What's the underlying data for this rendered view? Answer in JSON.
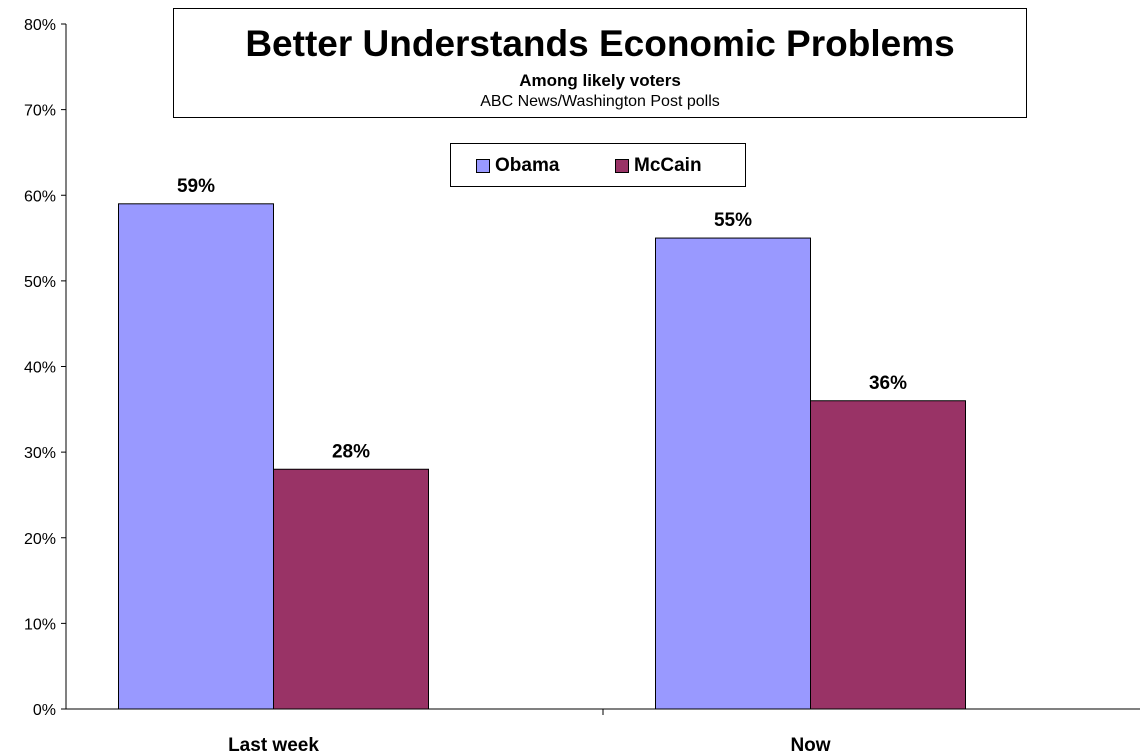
{
  "chart_data": {
    "type": "bar",
    "title": "Better Understands Economic Problems",
    "subtitle": "Among likely voters",
    "source": "ABC News/Washington Post polls",
    "categories": [
      "Last week",
      "Now"
    ],
    "series": [
      {
        "name": "Obama",
        "values": [
          59,
          55
        ],
        "color": "#9999ff"
      },
      {
        "name": "McCain",
        "values": [
          28,
          36
        ],
        "color": "#993366"
      }
    ],
    "data_labels": [
      [
        "59%",
        "55%"
      ],
      [
        "28%",
        "36%"
      ]
    ],
    "ylim": [
      0,
      80
    ],
    "yticks": [
      0,
      10,
      20,
      30,
      40,
      50,
      60,
      70,
      80
    ],
    "ytick_labels": [
      "0%",
      "10%",
      "20%",
      "30%",
      "40%",
      "50%",
      "60%",
      "70%",
      "80%"
    ],
    "xlabel": "",
    "ylabel": "",
    "grid": false,
    "legend_position": "top-center"
  }
}
